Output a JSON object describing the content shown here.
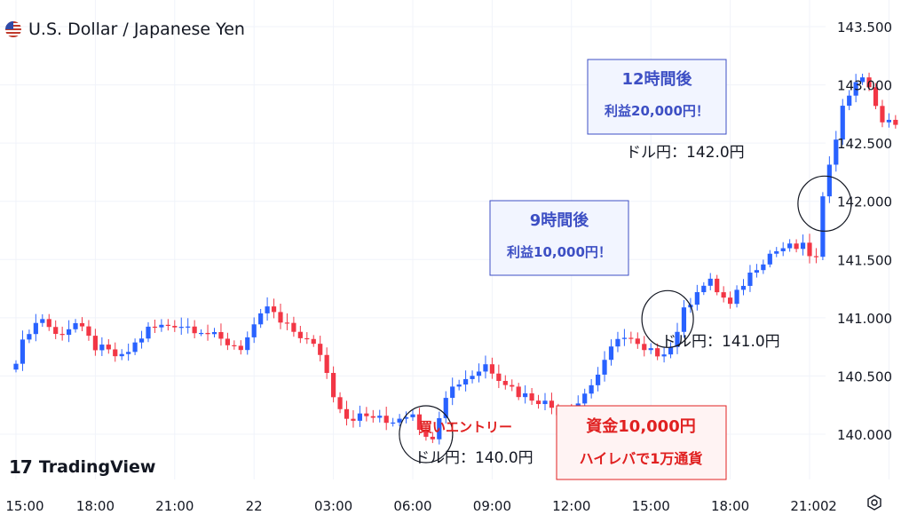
{
  "header": {
    "title": "U.S. Dollar / Japanese Yen",
    "flag_icon": "us-jp-flag-icon"
  },
  "branding": {
    "logo_mark": "17",
    "logo_text": "TradingView"
  },
  "colors": {
    "up": "#2962ff",
    "down": "#f23645",
    "grid": "#f0f3fa",
    "text": "#131722",
    "note_blue": "#3d4fc4",
    "note_red": "#e02020",
    "box_fill": "#f2f5ff",
    "box_fill_red": "#fff3f3"
  },
  "chart_data": {
    "type": "candlestick",
    "title": "U.S. Dollar / Japanese Yen",
    "y_ticks": [
      "143.500",
      "143.000",
      "142.500",
      "142.000",
      "141.500",
      "141.000",
      "140.500",
      "140.000"
    ],
    "y_tick_values": [
      143.5,
      143.0,
      142.5,
      142.0,
      141.5,
      141.0,
      140.5,
      140.0
    ],
    "x_ticks": [
      "15:00",
      "18:00",
      "21:00",
      "22",
      "03:00",
      "06:00",
      "09:00",
      "12:00",
      "15:00",
      "18:00",
      "21:00",
      "2"
    ],
    "x_tick_index": [
      0,
      12,
      24,
      36,
      48,
      60,
      72,
      84,
      96,
      108,
      120,
      132
    ],
    "bars_per_hour": 4,
    "ylim": [
      139.6,
      143.65
    ],
    "grid": true,
    "close_anchors": [
      [
        0,
        140.65
      ],
      [
        2,
        140.9
      ],
      [
        4,
        141.0
      ],
      [
        6,
        140.85
      ],
      [
        9,
        140.95
      ],
      [
        12,
        140.75
      ],
      [
        16,
        140.65
      ],
      [
        20,
        140.9
      ],
      [
        24,
        140.95
      ],
      [
        28,
        140.9
      ],
      [
        31,
        140.8
      ],
      [
        34,
        140.75
      ],
      [
        36,
        140.9
      ],
      [
        38,
        141.1
      ],
      [
        40,
        140.95
      ],
      [
        43,
        140.85
      ],
      [
        46,
        140.7
      ],
      [
        48,
        140.35
      ],
      [
        50,
        140.15
      ],
      [
        54,
        140.15
      ],
      [
        56,
        140.1
      ],
      [
        58,
        140.15
      ],
      [
        60,
        140.2
      ],
      [
        62,
        139.95
      ],
      [
        63,
        140.0
      ],
      [
        65,
        140.35
      ],
      [
        67,
        140.45
      ],
      [
        70,
        140.55
      ],
      [
        71,
        140.6
      ],
      [
        73,
        140.5
      ],
      [
        76,
        140.35
      ],
      [
        79,
        140.3
      ],
      [
        82,
        140.2
      ],
      [
        84,
        140.2
      ],
      [
        86,
        140.35
      ],
      [
        89,
        140.6
      ],
      [
        91,
        140.85
      ],
      [
        93,
        140.8
      ],
      [
        95,
        140.7
      ],
      [
        97,
        140.7
      ],
      [
        99,
        140.75
      ],
      [
        101,
        141.05
      ],
      [
        103,
        141.25
      ],
      [
        105,
        141.3
      ],
      [
        108,
        141.1
      ],
      [
        110,
        141.3
      ],
      [
        112,
        141.45
      ],
      [
        114,
        141.55
      ],
      [
        116,
        141.6
      ],
      [
        119,
        141.6
      ],
      [
        121,
        141.5
      ],
      [
        122,
        142.0
      ],
      [
        123,
        142.35
      ],
      [
        125,
        142.8
      ],
      [
        127,
        143.05
      ],
      [
        129,
        143.0
      ],
      [
        131,
        142.65
      ],
      [
        133,
        142.7
      ]
    ],
    "annotations": {
      "entry": {
        "label": "買いエントリー",
        "price": "ドル円：140.0円",
        "index": 62,
        "value": 140.0
      },
      "nine_hours": {
        "title": "9時間後",
        "profit": "利益10,000円！",
        "price": "ドル円：141.0円",
        "index": 98,
        "value": 141.05
      },
      "twelve_hours": {
        "title": "12時間後",
        "profit": "利益20,000円！",
        "price": "ドル円：142.0円",
        "index": 122,
        "value": 141.98
      },
      "capital": {
        "line1": "資金10,000円",
        "line2": "ハイレバで1万通貨"
      }
    }
  }
}
